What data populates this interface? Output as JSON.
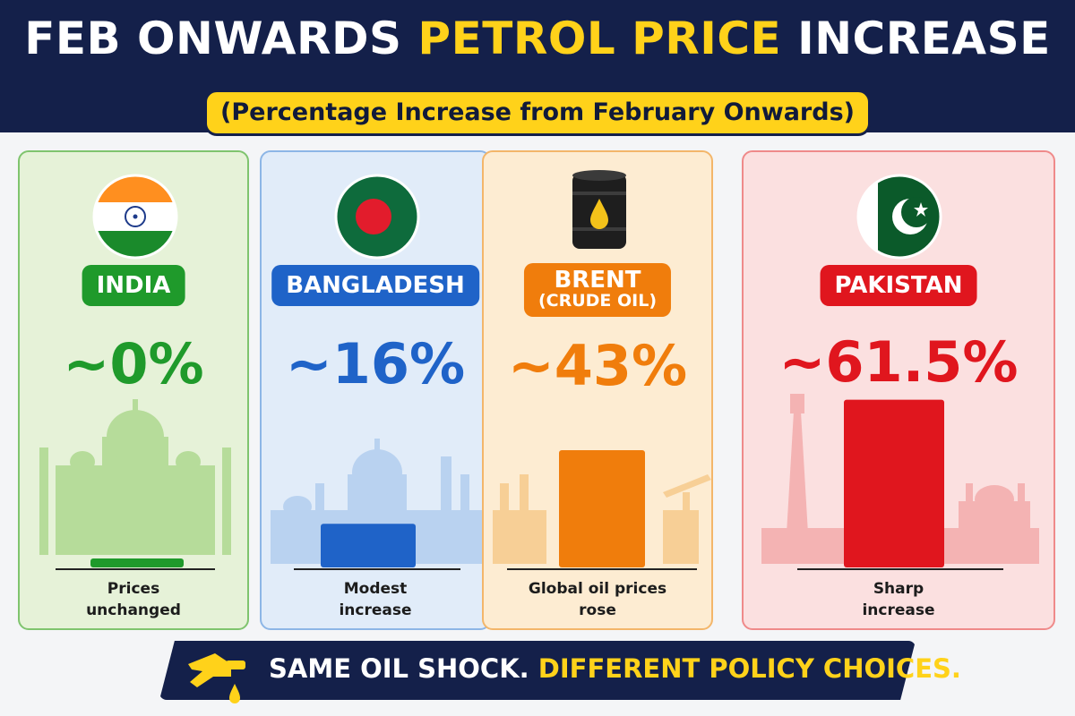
{
  "header": {
    "title_part1": "FEB ONWARDS ",
    "title_highlight": "PETROL PRICE",
    "title_part2": " INCREASE",
    "subtitle": "(Percentage Increase from February Onwards)"
  },
  "cards": [
    {
      "name": "INDIA",
      "subname": "",
      "value_label": "~0%",
      "caption_line1": "Prices",
      "caption_line2": "unchanged",
      "icon": "india-flag-icon",
      "accent": "#1f9a2b",
      "bg": "#e6f2d8",
      "border": "#7fc46e",
      "skyline": "#b6dc9a"
    },
    {
      "name": "BANGLADESH",
      "subname": "",
      "value_label": "~16%",
      "caption_line1": "Modest",
      "caption_line2": "increase",
      "icon": "bangladesh-flag-icon",
      "accent": "#1f63c8",
      "bg": "#e1ecf9",
      "border": "#8db6e6",
      "skyline": "#b9d2f0"
    },
    {
      "name": "BRENT",
      "subname": "(CRUDE OIL)",
      "value_label": "~43%",
      "caption_line1": "Global oil prices",
      "caption_line2": "rose",
      "icon": "oil-barrel-icon",
      "accent": "#f07d0c",
      "bg": "#fdecd2",
      "border": "#f3b66a",
      "skyline": "#f7cf96"
    },
    {
      "name": "PAKISTAN",
      "subname": "",
      "value_label": "~61.5%",
      "caption_line1": "Sharp",
      "caption_line2": "increase",
      "icon": "pakistan-flag-icon",
      "accent": "#e0161e",
      "bg": "#fbe0e0",
      "border": "#ef8a8a",
      "skyline": "#f4b3b3"
    }
  ],
  "footer": {
    "text_part1": "SAME OIL SHOCK. ",
    "text_highlight": "DIFFERENT POLICY CHOICES.",
    "icon": "fuel-nozzle-icon"
  },
  "chart_data": {
    "type": "bar",
    "title": "FEB ONWARDS PETROL PRICE INCREASE",
    "subtitle": "(Percentage Increase from February Onwards)",
    "categories": [
      "INDIA",
      "BANGLADESH",
      "BRENT (CRUDE OIL)",
      "PAKISTAN"
    ],
    "values": [
      0,
      16,
      43,
      61.5
    ],
    "data_labels": [
      "~0%",
      "~16%",
      "~43%",
      "~61.5%"
    ],
    "unit": "%",
    "ylim": [
      0,
      65
    ],
    "grid": false,
    "legend": "none"
  }
}
